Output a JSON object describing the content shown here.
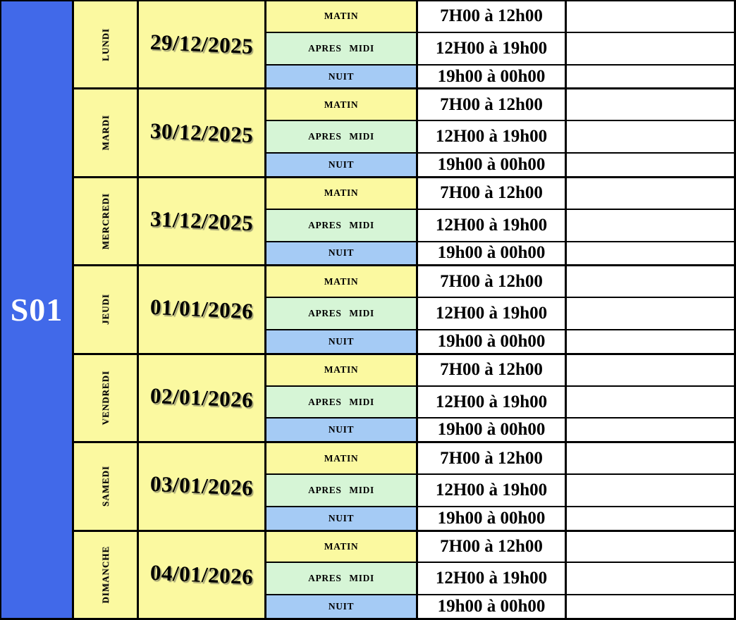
{
  "week": {
    "label": "S01"
  },
  "colors": {
    "week_bg": "#4169E9",
    "day_bg": "#FBF9A0",
    "matin_bg": "#FBF9A0",
    "apres_midi_bg": "#D6F5D6",
    "nuit_bg": "#A5CBF5",
    "border": "#000000"
  },
  "days": [
    {
      "name": "LUNDI",
      "date": "29/12/2025",
      "shifts": [
        {
          "label": "MATIN",
          "time": "7H00 à 12h00",
          "note": ""
        },
        {
          "label": "APRES MIDI",
          "time": "12H00 à 19h00",
          "note": ""
        },
        {
          "label": "NUIT",
          "time": "19h00 à 00h00",
          "note": ""
        }
      ]
    },
    {
      "name": "MARDI",
      "date": "30/12/2025",
      "shifts": [
        {
          "label": "MATIN",
          "time": "7H00 à 12h00",
          "note": ""
        },
        {
          "label": "APRES MIDI",
          "time": "12H00 à 19h00",
          "note": ""
        },
        {
          "label": "NUIT",
          "time": "19h00 à 00h00",
          "note": ""
        }
      ]
    },
    {
      "name": "MERCREDI",
      "date": "31/12/2025",
      "shifts": [
        {
          "label": "MATIN",
          "time": "7H00 à 12h00",
          "note": ""
        },
        {
          "label": "APRES MIDI",
          "time": "12H00 à 19h00",
          "note": ""
        },
        {
          "label": "NUIT",
          "time": "19h00 à 00h00",
          "note": ""
        }
      ]
    },
    {
      "name": "JEUDI",
      "date": "01/01/2026",
      "shifts": [
        {
          "label": "MATIN",
          "time": "7H00 à 12h00",
          "note": ""
        },
        {
          "label": "APRES MIDI",
          "time": "12H00 à 19h00",
          "note": ""
        },
        {
          "label": "NUIT",
          "time": "19h00 à 00h00",
          "note": ""
        }
      ]
    },
    {
      "name": "VENDREDI",
      "date": "02/01/2026",
      "shifts": [
        {
          "label": "MATIN",
          "time": "7H00 à 12h00",
          "note": ""
        },
        {
          "label": "APRES MIDI",
          "time": "12H00 à 19h00",
          "note": ""
        },
        {
          "label": "NUIT",
          "time": "19h00 à 00h00",
          "note": ""
        }
      ]
    },
    {
      "name": "SAMEDI",
      "date": "03/01/2026",
      "shifts": [
        {
          "label": "MATIN",
          "time": "7H00 à 12h00",
          "note": ""
        },
        {
          "label": "APRES MIDI",
          "time": "12H00 à 19h00",
          "note": ""
        },
        {
          "label": "NUIT",
          "time": "19h00 à 00h00",
          "note": ""
        }
      ]
    },
    {
      "name": "DIMANCHE",
      "date": "04/01/2026",
      "shifts": [
        {
          "label": "MATIN",
          "time": "7H00 à 12h00",
          "note": ""
        },
        {
          "label": "APRES MIDI",
          "time": "12H00 à 19h00",
          "note": ""
        },
        {
          "label": "NUIT",
          "time": "19h00 à 00h00",
          "note": ""
        }
      ]
    }
  ]
}
